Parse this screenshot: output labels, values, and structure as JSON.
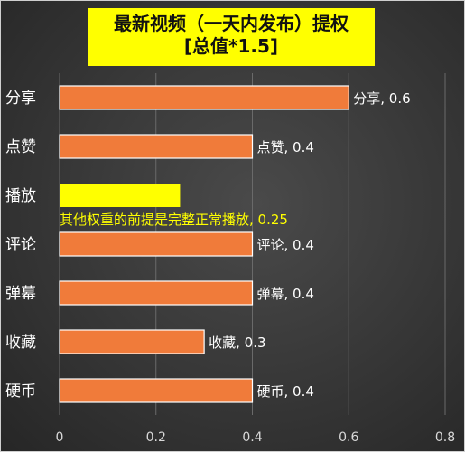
{
  "chart_data": {
    "type": "bar",
    "orientation": "horizontal",
    "title": "最新视频（一天内发布）提权",
    "subtitle": "[总值*1.5]",
    "categories": [
      "分享",
      "点赞",
      "播放",
      "评论",
      "弹幕",
      "收藏",
      "硬币"
    ],
    "values": [
      0.6,
      0.4,
      0.25,
      0.4,
      0.4,
      0.3,
      0.4
    ],
    "data_labels": [
      "分享, 0.6",
      "点赞, 0.4",
      "其他权重的前提是完整正常播放, 0.25",
      "评论, 0.4",
      "弹幕, 0.4",
      "收藏, 0.3",
      "硬币, 0.4"
    ],
    "highlight_category": "播放",
    "x_ticks": [
      "0",
      "0.2",
      "0.4",
      "0.6",
      "0.8"
    ],
    "xlim": [
      0,
      0.8
    ],
    "grid": true,
    "legend": "none",
    "colors": {
      "bar": "#f07b3a",
      "bar_edge": "#ffffff",
      "highlight_bar": "#ffff00",
      "highlight_label": "#ffff00",
      "label": "#ffffff",
      "tick": "#d9d9d9",
      "grid": "#6a6a6a",
      "title_box": "#ffff00"
    }
  }
}
